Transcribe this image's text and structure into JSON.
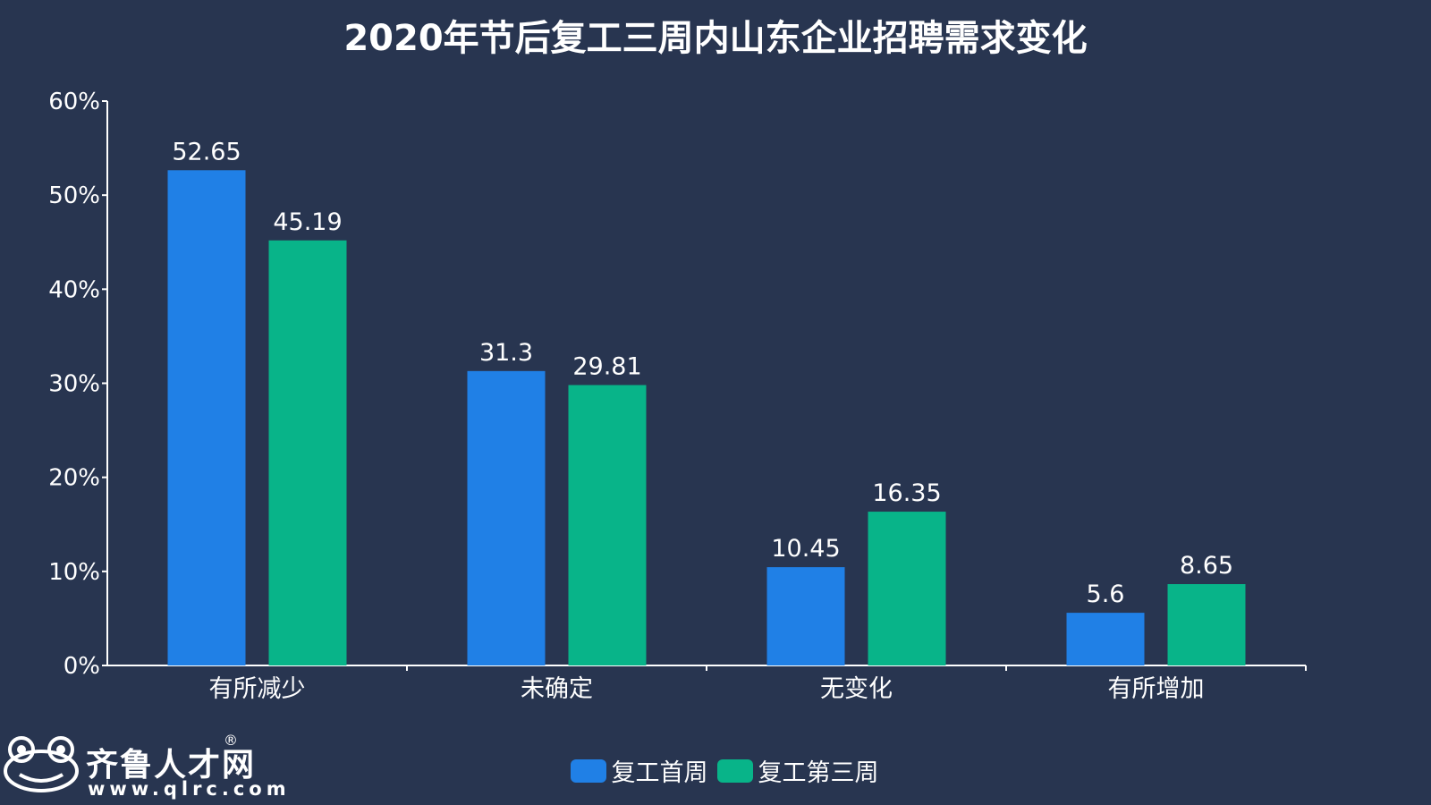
{
  "chart_data": {
    "type": "bar",
    "title": "2020年节后复工三周内山东企业招聘需求变化",
    "categories": [
      "有所减少",
      "未确定",
      "无变化",
      "有所增加"
    ],
    "series": [
      {
        "name": "复工首周",
        "color": "#2080e6",
        "values": [
          52.65,
          31.3,
          10.45,
          5.6
        ],
        "labels": [
          "52.65",
          "31.3",
          "10.45",
          "5.6"
        ]
      },
      {
        "name": "复工第三周",
        "color": "#08b489",
        "values": [
          45.19,
          29.81,
          16.35,
          8.65
        ],
        "labels": [
          "45.19",
          "29.81",
          "16.35",
          "8.65"
        ]
      }
    ],
    "ylim": [
      0,
      60
    ],
    "yticks": [
      0,
      10,
      20,
      30,
      40,
      50,
      60
    ],
    "ytick_labels": [
      "0%",
      "10%",
      "20%",
      "30%",
      "40%",
      "50%",
      "60%"
    ],
    "xlabel": "",
    "ylabel": "",
    "legend_position": "bottom-center",
    "grid": false
  },
  "logo": {
    "name": "齐鲁人才网",
    "registered": "®",
    "url": "www.qlrc.com"
  },
  "colors": {
    "background": "#283550",
    "axis": "#ffffff"
  }
}
